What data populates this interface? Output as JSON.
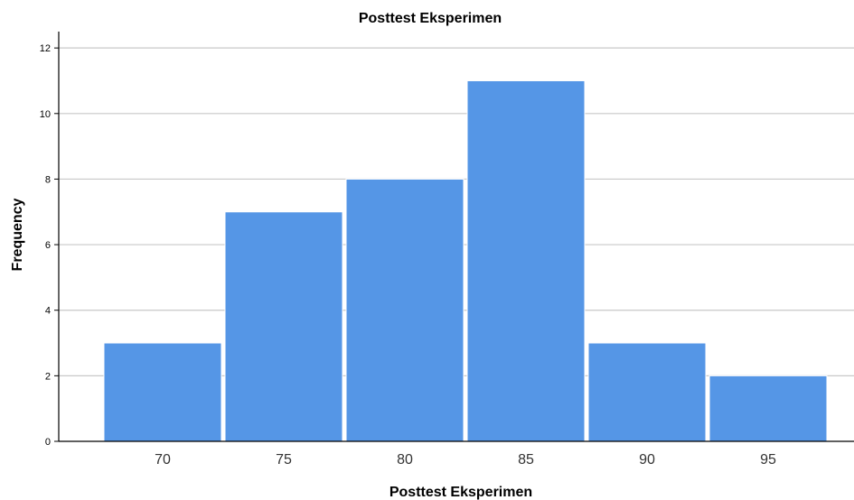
{
  "chart_data": {
    "type": "bar",
    "title": "Posttest Eksperimen",
    "xlabel": "Posttest Eksperimen",
    "ylabel": "Frequency",
    "categories": [
      "70",
      "75",
      "80",
      "85",
      "90",
      "95"
    ],
    "values": [
      3,
      7,
      8,
      11,
      3,
      2
    ],
    "yticks": [
      "0",
      "2",
      "4",
      "6",
      "8",
      "10",
      "12"
    ],
    "ylim": [
      0,
      12.5
    ],
    "grid": true,
    "bar_color": "#5596e6",
    "bar_edge_color": "#ffffff",
    "grid_color": "#c8c8c8",
    "axis_color": "#000000"
  }
}
